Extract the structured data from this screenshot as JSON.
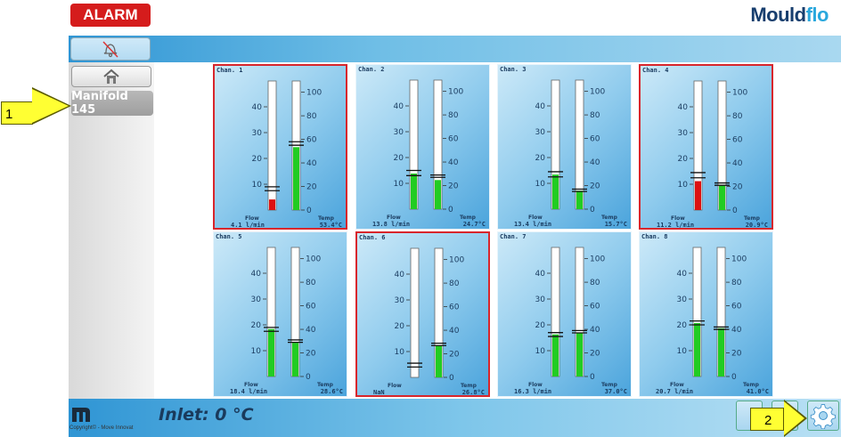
{
  "header": {
    "alarm_label": "ALARM",
    "logo_main": "Mould",
    "logo_accent": "flo"
  },
  "sidebar": {
    "manifold_label": "Manifold 145"
  },
  "callouts": [
    {
      "label": "1"
    },
    {
      "label": "2"
    }
  ],
  "footer": {
    "inlet_text": "Inlet: 0 °C",
    "copyright": "Copyright© - Move Innovat"
  },
  "scales": {
    "flow_ticks": [
      "40",
      "30",
      "20",
      "10"
    ],
    "temp_ticks": [
      "100",
      "80",
      "60",
      "40",
      "20",
      "0"
    ],
    "flow_max": 40,
    "temp_max": 100
  },
  "labels": {
    "flow": "Flow",
    "temp": "Temp"
  },
  "colors": {
    "alarm": "#d51c1c",
    "ok_fill": "#22cc22",
    "alarm_fill": "#dd1111",
    "brand_dark": "#173e6e",
    "brand_light": "#2aa8dd"
  },
  "channels": [
    {
      "name": "Chan. 1",
      "alarm": true,
      "flow_text": "4.1 l/min",
      "temp_text": "53.4°C",
      "flow": 4.1,
      "temp": 53.4,
      "flow_alarm": true,
      "flow_marks": [
        7.5,
        9
      ],
      "temp_marks": [
        55,
        58
      ]
    },
    {
      "name": "Chan. 2",
      "alarm": false,
      "flow_text": "13.8 l/min",
      "temp_text": "24.7°C",
      "flow": 13.8,
      "temp": 24.7,
      "flow_alarm": false,
      "flow_marks": [
        13,
        15
      ],
      "temp_marks": [
        27,
        29
      ]
    },
    {
      "name": "Chan. 3",
      "alarm": false,
      "flow_text": "13.4 l/min",
      "temp_text": "15.7°C",
      "flow": 13.4,
      "temp": 15.7,
      "flow_alarm": false,
      "flow_marks": [
        12.5,
        14.5
      ],
      "temp_marks": [
        15,
        17
      ]
    },
    {
      "name": "Chan. 4",
      "alarm": true,
      "flow_text": "11.2 l/min",
      "temp_text": "20.9°C",
      "flow": 11.2,
      "temp": 20.9,
      "flow_alarm": true,
      "flow_marks": [
        12.5,
        14.5
      ],
      "temp_marks": [
        21,
        23
      ]
    },
    {
      "name": "Chan. 5",
      "alarm": false,
      "flow_text": "18.4 l/min",
      "temp_text": "28.6°C",
      "flow": 18.4,
      "temp": 28.6,
      "flow_alarm": false,
      "flow_marks": [
        17.5,
        19
      ],
      "temp_marks": [
        29,
        31
      ]
    },
    {
      "name": "Chan. 6",
      "alarm": true,
      "flow_text": "NaN",
      "temp_text": "26.8°C",
      "flow": 0,
      "temp": 26.8,
      "flow_alarm": false,
      "flow_marks": [
        4,
        5.5
      ],
      "temp_marks": [
        27,
        29
      ]
    },
    {
      "name": "Chan. 7",
      "alarm": false,
      "flow_text": "16.3 l/min",
      "temp_text": "37.0°C",
      "flow": 16.3,
      "temp": 37.0,
      "flow_alarm": false,
      "flow_marks": [
        15.5,
        17
      ],
      "temp_marks": [
        37,
        39
      ]
    },
    {
      "name": "Chan. 8",
      "alarm": false,
      "flow_text": "20.7 l/min",
      "temp_text": "41.0°C",
      "flow": 20.7,
      "temp": 41.0,
      "flow_alarm": false,
      "flow_marks": [
        20,
        21.5
      ],
      "temp_marks": [
        40,
        42
      ]
    }
  ]
}
